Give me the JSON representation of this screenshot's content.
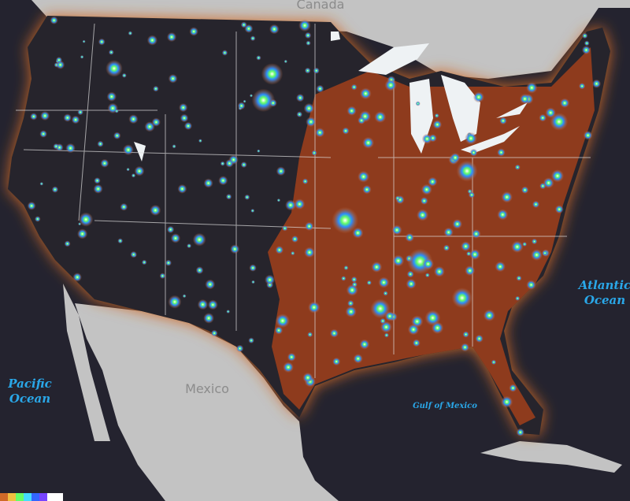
{
  "map": {
    "labels": {
      "canada": "Canada",
      "mexico": "Mexico",
      "pacific": [
        "Pacific",
        "Ocean"
      ],
      "atlantic": [
        "Atlantic",
        "Ocean"
      ],
      "gulf": "Gulf of Mexico"
    }
  }
}
